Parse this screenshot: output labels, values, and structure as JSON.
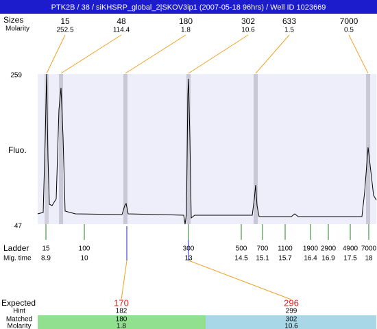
{
  "header": {
    "title": "PTK2B / 38 / siKHSRP_global_2|SKOV3ip1 (2007-05-18 96hrs) / Well ID 1023669"
  },
  "top": {
    "size_label": "Sizes",
    "molarity_label": "Molarity",
    "peaks": [
      {
        "size": 15,
        "molarity": 252.5
      },
      {
        "size": 48,
        "molarity": 114.4
      },
      {
        "size": 180,
        "molarity": 1.8
      },
      {
        "size": 302,
        "molarity": 10.6
      },
      {
        "size": 633,
        "molarity": 1.5
      },
      {
        "size": 7000,
        "molarity": 0.5
      }
    ]
  },
  "axis": {
    "max": 259,
    "min": 47,
    "label": "Fluo."
  },
  "ladder": {
    "label": "Ladder",
    "time_label": "Mig. time",
    "bands": [
      {
        "size": 15,
        "time": 8.9
      },
      {
        "size": 100,
        "time": 10
      },
      {
        "size": 300,
        "time": 13
      },
      {
        "size": 500,
        "time": 14.5
      },
      {
        "size": 700,
        "time": 15.1
      },
      {
        "size": 1100,
        "time": 15.7
      },
      {
        "size": 1900,
        "time": 16.4
      },
      {
        "size": 2900,
        "time": 16.9
      },
      {
        "size": 4900,
        "time": 17.5
      },
      {
        "size": 7000,
        "time": 18
      }
    ]
  },
  "expected": {
    "label": "Expected",
    "hint_label": "Hint",
    "matched_label": "Matched",
    "molarity_label": "Molarity",
    "items": [
      {
        "expected": 170,
        "hint": 182,
        "matched": 180,
        "molarity": 1.8
      },
      {
        "expected": 296,
        "hint": 299,
        "matched": 302,
        "molarity": 10.6
      }
    ]
  }
}
